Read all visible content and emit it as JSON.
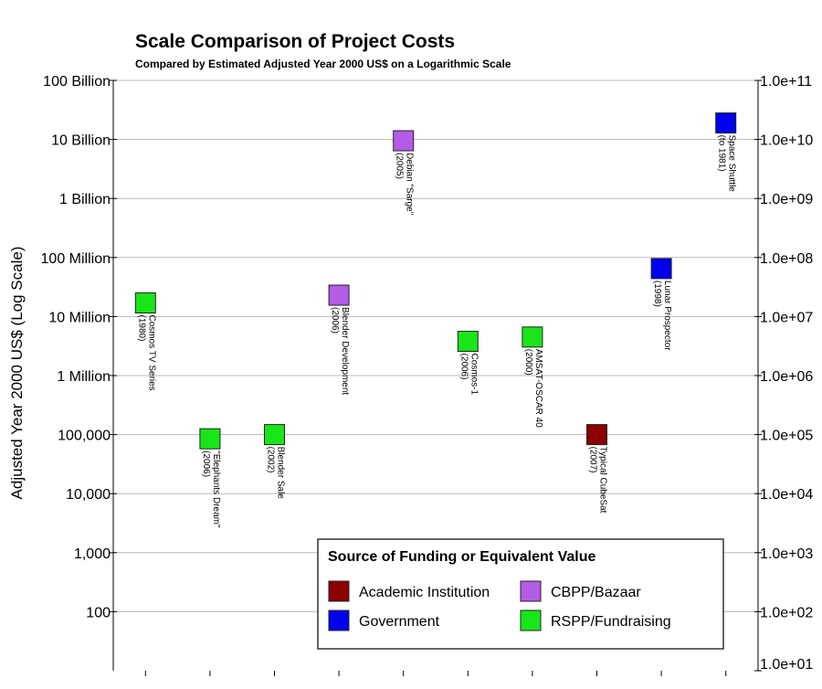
{
  "chart_data": {
    "type": "scatter",
    "title": "Scale Comparison of Project Costs",
    "subtitle": "Compared by Estimated Adjusted Year 2000 US$ on a Logarithmic Scale",
    "ylabel": "Adjusted Year 2000 US$ (Log Scale)",
    "y_scale": "log",
    "ylim": [
      10,
      100000000000
    ],
    "grid": true,
    "left_ticks": [
      {
        "value": 100,
        "label": "100"
      },
      {
        "value": 1000,
        "label": "1,000"
      },
      {
        "value": 10000,
        "label": "10,000"
      },
      {
        "value": 100000,
        "label": "100,000"
      },
      {
        "value": 1000000,
        "label": "1 Million"
      },
      {
        "value": 10000000,
        "label": "10 Million"
      },
      {
        "value": 100000000,
        "label": "100 Million"
      },
      {
        "value": 1000000000,
        "label": "1 Billion"
      },
      {
        "value": 10000000000,
        "label": "10 Billion"
      },
      {
        "value": 100000000000,
        "label": "100 Billion"
      }
    ],
    "right_ticks": [
      {
        "value": 10,
        "label": "1.0e+01"
      },
      {
        "value": 100,
        "label": "1.0e+02"
      },
      {
        "value": 1000,
        "label": "1.0e+03"
      },
      {
        "value": 10000,
        "label": "1.0e+04"
      },
      {
        "value": 100000,
        "label": "1.0e+05"
      },
      {
        "value": 1000000,
        "label": "1.0e+06"
      },
      {
        "value": 10000000,
        "label": "1.0e+07"
      },
      {
        "value": 100000000,
        "label": "1.0e+08"
      },
      {
        "value": 1000000000,
        "label": "1.0e+09"
      },
      {
        "value": 10000000000,
        "label": "1.0e+10"
      },
      {
        "value": 100000000000,
        "label": "1.0e+11"
      }
    ],
    "categories": {
      "academic": {
        "label": "Academic Institution",
        "color": "#8b0000"
      },
      "cbpp": {
        "label": "CBPP/Bazaar",
        "color": "#b35ce6"
      },
      "government": {
        "label": "Government",
        "color": "#0000ee"
      },
      "rspp": {
        "label": "RSPP/Fundraising",
        "color": "#19e619"
      }
    },
    "legend": {
      "title": "Source of Funding or Equivalent Value",
      "placement": "bottom-right",
      "order": [
        "academic",
        "cbpp",
        "government",
        "rspp"
      ]
    },
    "points": [
      {
        "lines": [
          "Cosmos TV Series",
          "(1980)"
        ],
        "value": 17000000,
        "category": "rspp"
      },
      {
        "lines": [
          "\"Elephants Dream\"",
          "(2006)"
        ],
        "value": 85000,
        "category": "rspp"
      },
      {
        "lines": [
          "Blender Sale",
          "(2002)"
        ],
        "value": 100000,
        "category": "rspp"
      },
      {
        "lines": [
          "Blender Development",
          "(2006)"
        ],
        "value": 23000000,
        "category": "cbpp"
      },
      {
        "lines": [
          "Debian \"Sarge\"",
          "(2005)"
        ],
        "value": 9500000000,
        "category": "cbpp"
      },
      {
        "lines": [
          "Cosmos-1",
          "(2006)"
        ],
        "value": 3800000,
        "category": "rspp"
      },
      {
        "lines": [
          "AMSAT-OSCAR 40",
          "(2000)"
        ],
        "value": 4500000,
        "category": "rspp"
      },
      {
        "lines": [
          "Typical CubeSat",
          "(2007)"
        ],
        "value": 100000,
        "category": "academic"
      },
      {
        "lines": [
          "Lunar Prospector",
          "(1998)"
        ],
        "value": 65000000,
        "category": "government"
      },
      {
        "lines": [
          "Space Shuttle",
          "(to 1981)"
        ],
        "value": 19000000000,
        "category": "government"
      }
    ]
  }
}
